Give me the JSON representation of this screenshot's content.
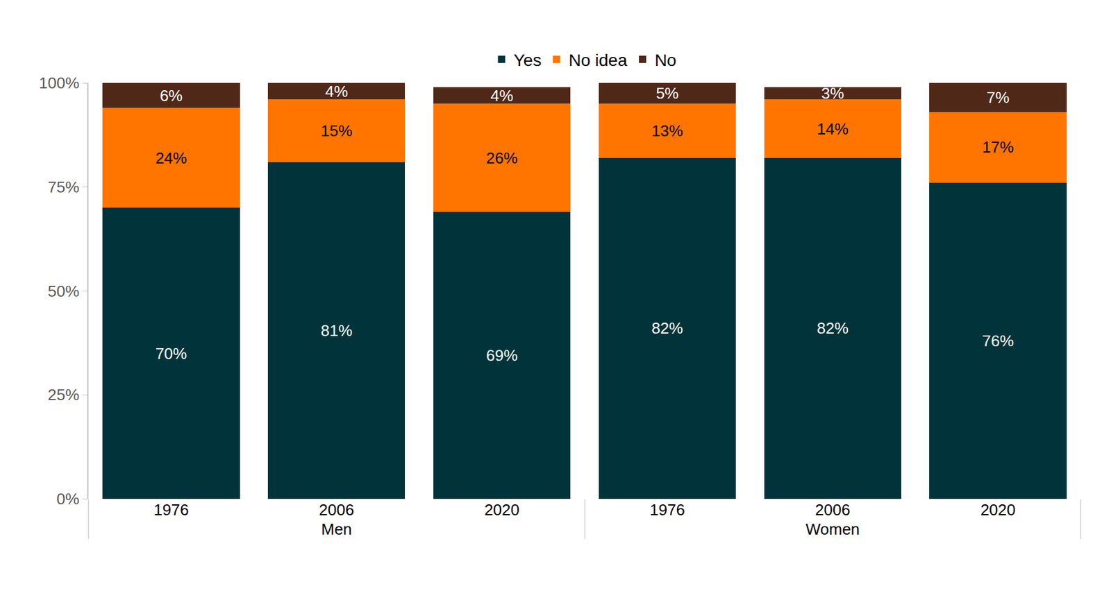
{
  "chart_data": {
    "type": "bar",
    "stacked": true,
    "data_labels": true,
    "legend": "top",
    "grid": false,
    "categories": [
      [
        "Men",
        "1976"
      ],
      [
        "Men",
        "2006"
      ],
      [
        "Men",
        "2020"
      ],
      [
        "Women",
        "1976"
      ],
      [
        "Women",
        "2006"
      ],
      [
        "Women",
        "2020"
      ]
    ],
    "series": [
      {
        "name": "Yes",
        "color": "#01343A",
        "values": [
          70,
          81,
          69,
          82,
          82,
          76
        ],
        "value_labels": [
          "70%",
          "81%",
          "69%",
          "82%",
          "82%",
          "76%"
        ]
      },
      {
        "name": "No idea",
        "color": "#FF7500",
        "values": [
          24,
          15,
          26,
          13,
          14,
          17
        ],
        "value_labels": [
          "24%",
          "15%",
          "26%",
          "13%",
          "14%",
          "17%"
        ]
      },
      {
        "name": "No",
        "color": "#4F2818",
        "values": [
          6,
          4,
          4,
          5,
          3,
          7
        ],
        "value_labels": [
          "6%",
          "4%",
          "4%",
          "5%",
          "3%",
          "7%"
        ]
      }
    ],
    "ylim": [
      0,
      100
    ],
    "yticks": [
      {
        "value": 0,
        "label": "0%"
      },
      {
        "value": 25,
        "label": "25%"
      },
      {
        "value": 50,
        "label": "50%"
      },
      {
        "value": 75,
        "label": "75%"
      },
      {
        "value": 100,
        "label": "100%"
      }
    ]
  }
}
